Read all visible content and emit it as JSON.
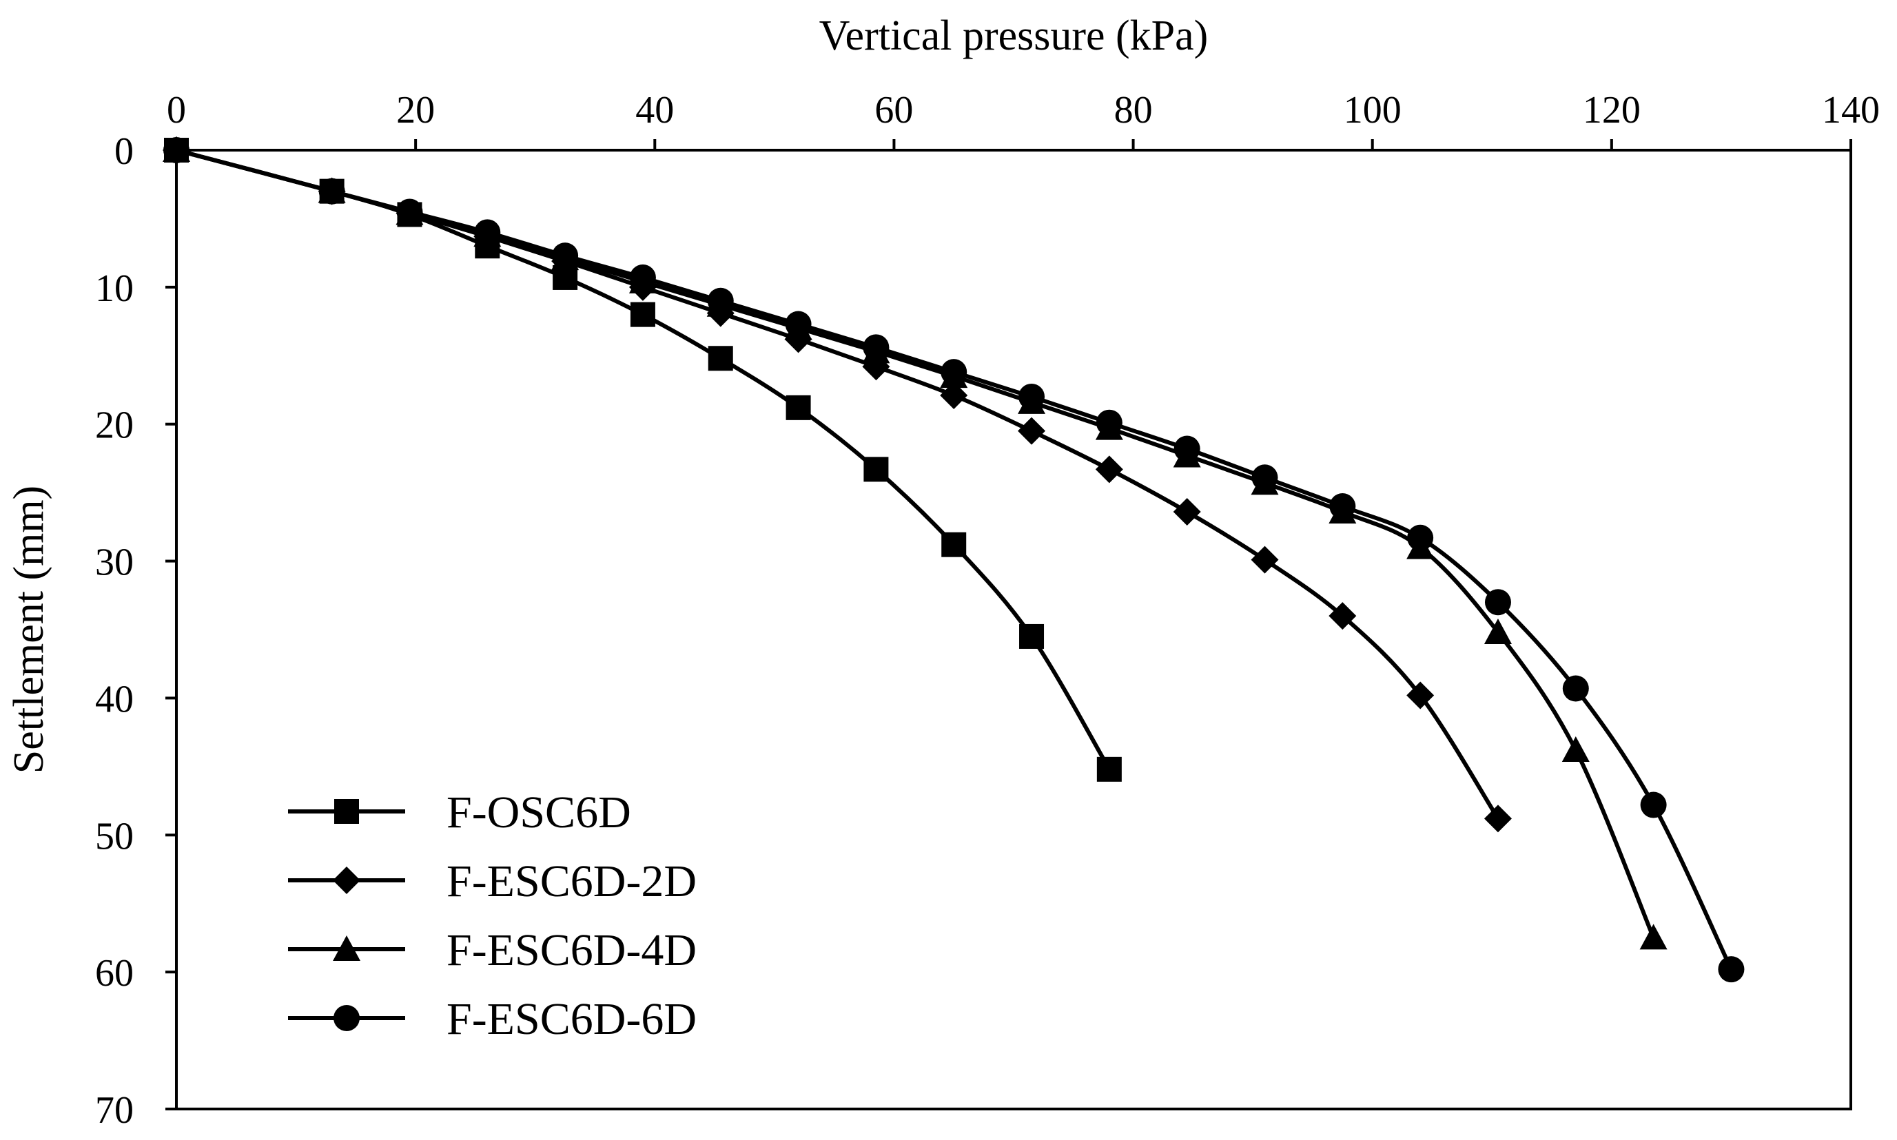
{
  "chart_data": {
    "type": "line",
    "title": "",
    "xlabel": "Vertical pressure (kPa)",
    "ylabel": "Settlement (mm)",
    "xlim": [
      0,
      140
    ],
    "ylim": [
      0,
      70
    ],
    "x_axis_position": "top",
    "y_axis_inverted": true,
    "grid": false,
    "legend_position": "bottom-left",
    "xticks": [
      0,
      20,
      40,
      60,
      80,
      100,
      120,
      140
    ],
    "yticks": [
      0,
      10,
      20,
      30,
      40,
      50,
      60,
      70
    ],
    "series": [
      {
        "name": "F-OSC6D",
        "marker": "square",
        "points": [
          [
            0,
            0
          ],
          [
            13,
            3
          ],
          [
            19.5,
            4.7
          ],
          [
            26,
            7
          ],
          [
            32.5,
            9.3
          ],
          [
            39,
            12
          ],
          [
            45.5,
            15.2
          ],
          [
            52,
            18.8
          ],
          [
            58.5,
            23.3
          ],
          [
            65,
            28.8
          ],
          [
            71.5,
            35.5
          ],
          [
            78,
            45.2
          ]
        ]
      },
      {
        "name": "F-ESC6D-2D",
        "marker": "diamond",
        "points": [
          [
            0,
            0
          ],
          [
            13,
            3
          ],
          [
            19.5,
            4.6
          ],
          [
            26,
            6.3
          ],
          [
            32.5,
            8.1
          ],
          [
            39,
            10
          ],
          [
            45.5,
            11.9
          ],
          [
            52,
            13.8
          ],
          [
            58.5,
            15.8
          ],
          [
            65,
            17.9
          ],
          [
            71.5,
            20.5
          ],
          [
            78,
            23.3
          ],
          [
            84.5,
            26.4
          ],
          [
            91,
            29.9
          ],
          [
            97.5,
            34
          ],
          [
            104,
            39.8
          ],
          [
            110.5,
            48.8
          ]
        ]
      },
      {
        "name": "F-ESC6D-4D",
        "marker": "triangle",
        "points": [
          [
            0,
            0
          ],
          [
            13,
            3
          ],
          [
            19.5,
            4.6
          ],
          [
            26,
            6.2
          ],
          [
            32.5,
            7.9
          ],
          [
            39,
            9.6
          ],
          [
            45.5,
            11.3
          ],
          [
            52,
            13
          ],
          [
            58.5,
            14.7
          ],
          [
            65,
            16.5
          ],
          [
            71.5,
            18.4
          ],
          [
            78,
            20.3
          ],
          [
            84.5,
            22.3
          ],
          [
            91,
            24.3
          ],
          [
            97.5,
            26.4
          ],
          [
            104,
            29
          ],
          [
            110.5,
            35.2
          ],
          [
            117,
            43.8
          ],
          [
            123.5,
            57.5
          ]
        ]
      },
      {
        "name": "F-ESC6D-6D",
        "marker": "circle",
        "points": [
          [
            0,
            0
          ],
          [
            13,
            3
          ],
          [
            19.5,
            4.5
          ],
          [
            26,
            6
          ],
          [
            32.5,
            7.7
          ],
          [
            39,
            9.3
          ],
          [
            45.5,
            11
          ],
          [
            52,
            12.7
          ],
          [
            58.5,
            14.4
          ],
          [
            65,
            16.2
          ],
          [
            71.5,
            18
          ],
          [
            78,
            19.9
          ],
          [
            84.5,
            21.8
          ],
          [
            91,
            23.9
          ],
          [
            97.5,
            26
          ],
          [
            104,
            28.3
          ],
          [
            110.5,
            33
          ],
          [
            117,
            39.3
          ],
          [
            123.5,
            47.8
          ],
          [
            130,
            59.8
          ]
        ]
      }
    ]
  }
}
